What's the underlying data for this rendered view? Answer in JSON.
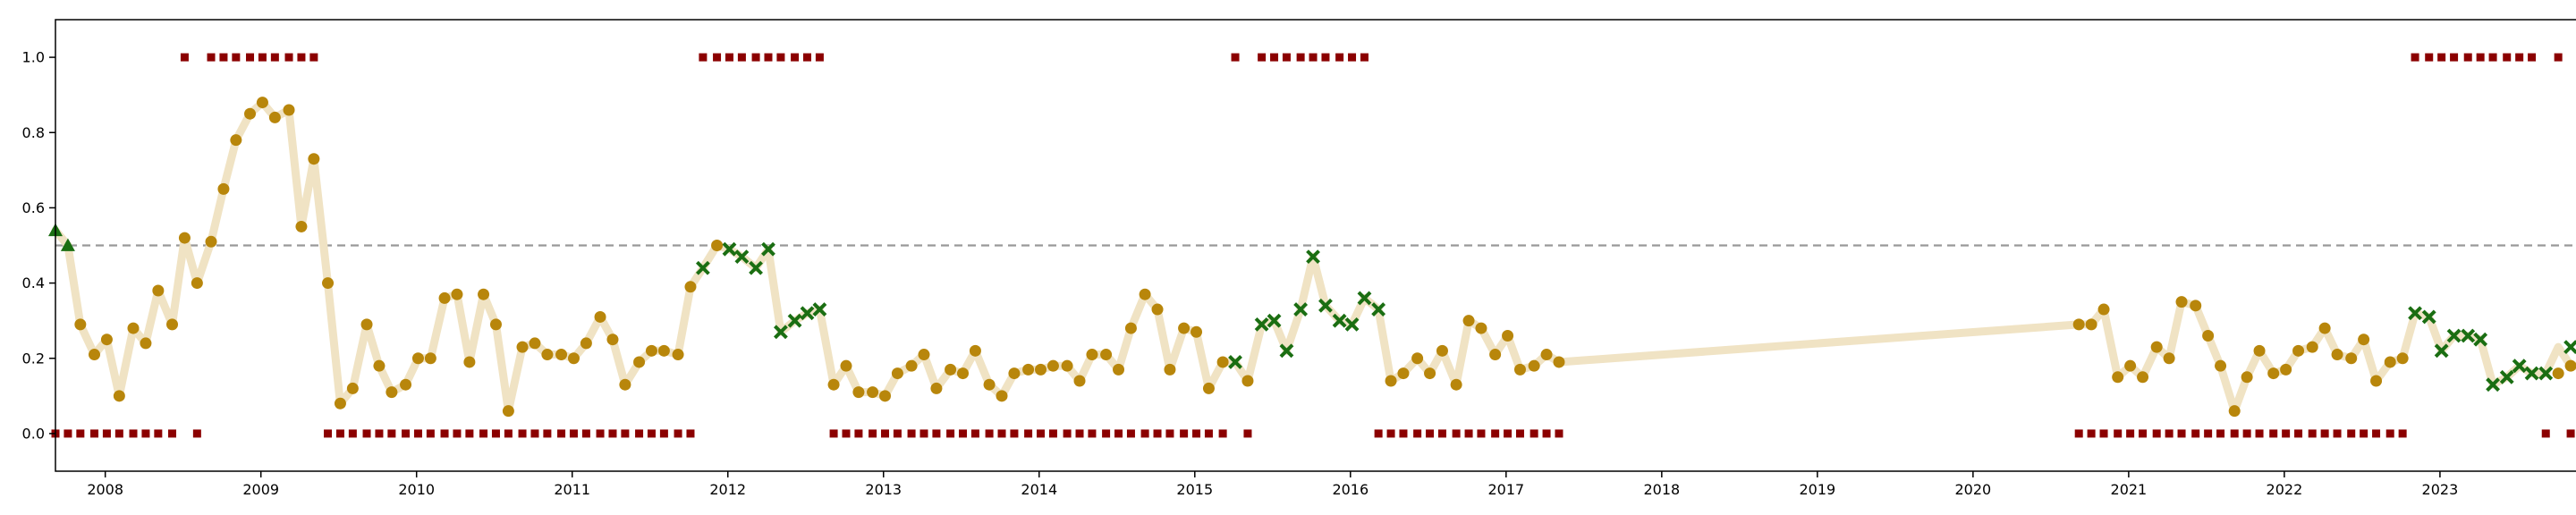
{
  "chart_data": {
    "type": "scatter",
    "title": "",
    "xlabel": "",
    "ylabel": "",
    "xlim": [
      2007.68,
      2023.92
    ],
    "ylim": [
      -0.1,
      1.1
    ],
    "x_ticks": [
      2008,
      2009,
      2010,
      2011,
      2012,
      2013,
      2014,
      2015,
      2016,
      2017,
      2018,
      2019,
      2020,
      2021,
      2022,
      2023
    ],
    "x_tick_labels": [
      "2008",
      "2009",
      "2010",
      "2011",
      "2012",
      "2013",
      "2014",
      "2015",
      "2016",
      "2017",
      "2018",
      "2019",
      "2020",
      "2021",
      "2022",
      "2023"
    ],
    "y_ticks": [
      0.0,
      0.2,
      0.4,
      0.6,
      0.8,
      1.0
    ],
    "y_tick_labels": [
      "0.0",
      "0.2",
      "0.4",
      "0.6",
      "0.8",
      "1.0"
    ],
    "reference_line": {
      "y": 0.5,
      "style": "dashed",
      "color": "#999999"
    },
    "grid": false,
    "legend": "none",
    "colors": {
      "line": "#f0e3c4",
      "circle": "#b8860b",
      "cross": "#1a6e12",
      "triangle": "#1a6e12",
      "square": "#8b0000"
    },
    "series": [
      {
        "marker": "line",
        "x": [
          2007.68,
          2007.76,
          2007.84,
          2007.93,
          2008.01,
          2008.09,
          2008.18,
          2008.26,
          2008.34,
          2008.43,
          2008.51,
          2008.59,
          2008.68,
          2008.76,
          2008.84,
          2008.93,
          2009.01,
          2009.09,
          2009.18,
          2009.26,
          2009.34,
          2009.43,
          2009.51,
          2009.59,
          2009.68,
          2009.76,
          2009.84,
          2009.93,
          2010.01,
          2010.09,
          2010.18,
          2010.26,
          2010.34,
          2010.43,
          2010.51,
          2010.59,
          2010.68,
          2010.76,
          2010.84,
          2010.93,
          2011.01,
          2011.09,
          2011.18,
          2011.26,
          2011.34,
          2011.43,
          2011.51,
          2011.59,
          2011.68,
          2011.76,
          2011.84,
          2011.93,
          2012.01,
          2012.09,
          2012.18,
          2012.26,
          2012.34,
          2012.43,
          2012.51,
          2012.59,
          2012.68,
          2012.76,
          2012.84,
          2012.93,
          2013.01,
          2013.09,
          2013.18,
          2013.26,
          2013.34,
          2013.43,
          2013.51,
          2013.59,
          2013.68,
          2013.76,
          2013.84,
          2013.93,
          2014.01,
          2014.09,
          2014.18,
          2014.26,
          2014.34,
          2014.43,
          2014.51,
          2014.59,
          2014.68,
          2014.76,
          2014.84,
          2014.93,
          2015.01,
          2015.09,
          2015.18,
          2015.26,
          2015.34,
          2015.43,
          2015.51,
          2015.59,
          2015.68,
          2015.76,
          2015.84,
          2015.93,
          2016.01,
          2016.09,
          2016.18,
          2016.26,
          2016.34,
          2016.43,
          2016.51,
          2016.59,
          2016.68,
          2016.76,
          2016.84,
          2016.93,
          2017.01,
          2017.09,
          2017.18,
          2017.26,
          2017.34,
          2020.68,
          2020.76,
          2020.84,
          2020.93,
          2021.01,
          2021.09,
          2021.18,
          2021.26,
          2021.34,
          2021.43,
          2021.51,
          2021.59,
          2021.68,
          2021.76,
          2021.84,
          2021.93,
          2022.01,
          2022.09,
          2022.18,
          2022.26,
          2022.34,
          2022.43,
          2022.51,
          2022.59,
          2022.68,
          2022.76,
          2022.84,
          2022.93,
          2023.01,
          2023.09,
          2023.18,
          2023.26,
          2023.34,
          2023.43,
          2023.51,
          2023.59,
          2023.68,
          2023.76,
          2023.84,
          2023.92
        ],
        "y": [
          0.54,
          0.5,
          0.29,
          0.21,
          0.25,
          0.1,
          0.28,
          0.24,
          0.38,
          0.29,
          0.52,
          0.4,
          0.51,
          0.65,
          0.78,
          0.85,
          0.88,
          0.84,
          0.86,
          0.55,
          0.73,
          0.4,
          0.08,
          0.12,
          0.29,
          0.18,
          0.11,
          0.13,
          0.2,
          0.2,
          0.36,
          0.37,
          0.19,
          0.37,
          0.29,
          0.06,
          0.23,
          0.24,
          0.21,
          0.21,
          0.2,
          0.24,
          0.31,
          0.25,
          0.13,
          0.19,
          0.22,
          0.22,
          0.21,
          0.39,
          0.44,
          0.5,
          0.49,
          0.47,
          0.44,
          0.49,
          0.27,
          0.3,
          0.32,
          0.33,
          0.13,
          0.18,
          0.11,
          0.11,
          0.1,
          0.16,
          0.18,
          0.21,
          0.12,
          0.17,
          0.16,
          0.22,
          0.13,
          0.1,
          0.16,
          0.17,
          0.17,
          0.18,
          0.18,
          0.14,
          0.21,
          0.21,
          0.17,
          0.28,
          0.37,
          0.33,
          0.17,
          0.28,
          0.27,
          0.12,
          0.19,
          0.19,
          0.14,
          0.29,
          0.3,
          0.22,
          0.33,
          0.47,
          0.34,
          0.3,
          0.29,
          0.36,
          0.33,
          0.14,
          0.16,
          0.2,
          0.16,
          0.22,
          0.13,
          0.3,
          0.28,
          0.21,
          0.26,
          0.17,
          0.18,
          0.21,
          0.19,
          0.29,
          0.29,
          0.33,
          0.15,
          0.18,
          0.15,
          0.23,
          0.2,
          0.35,
          0.34,
          0.26,
          0.18,
          0.06,
          0.15,
          0.22,
          0.16,
          0.17,
          0.22,
          0.23,
          0.28,
          0.21,
          0.2,
          0.25,
          0.14,
          0.19,
          0.2,
          0.32,
          0.31,
          0.22,
          0.26,
          0.26,
          0.25,
          0.13,
          0.15,
          0.18,
          0.16,
          0.16,
          0.23,
          0.18,
          0.18
        ]
      },
      {
        "marker": "circle",
        "x": [
          2007.84,
          2007.93,
          2008.01,
          2008.09,
          2008.18,
          2008.26,
          2008.34,
          2008.43,
          2008.51,
          2008.59,
          2008.68,
          2008.76,
          2008.84,
          2008.93,
          2009.01,
          2009.09,
          2009.18,
          2009.26,
          2009.34,
          2009.43,
          2009.51,
          2009.59,
          2009.68,
          2009.76,
          2009.84,
          2009.93,
          2010.01,
          2010.09,
          2010.18,
          2010.26,
          2010.34,
          2010.43,
          2010.51,
          2010.59,
          2010.68,
          2010.76,
          2010.84,
          2010.93,
          2011.01,
          2011.09,
          2011.18,
          2011.26,
          2011.34,
          2011.43,
          2011.51,
          2011.59,
          2011.68,
          2011.76,
          2011.93,
          2012.68,
          2012.76,
          2012.84,
          2012.93,
          2013.01,
          2013.09,
          2013.18,
          2013.26,
          2013.34,
          2013.43,
          2013.51,
          2013.59,
          2013.68,
          2013.76,
          2013.84,
          2013.93,
          2014.01,
          2014.09,
          2014.18,
          2014.26,
          2014.34,
          2014.43,
          2014.51,
          2014.59,
          2014.68,
          2014.76,
          2014.84,
          2014.93,
          2015.01,
          2015.09,
          2015.18,
          2015.34,
          2016.26,
          2016.34,
          2016.43,
          2016.51,
          2016.59,
          2016.68,
          2016.76,
          2016.84,
          2016.93,
          2017.01,
          2017.09,
          2017.18,
          2017.26,
          2017.34,
          2020.68,
          2020.76,
          2020.84,
          2020.93,
          2021.01,
          2021.09,
          2021.18,
          2021.26,
          2021.34,
          2021.43,
          2021.51,
          2021.59,
          2021.68,
          2021.76,
          2021.84,
          2021.93,
          2022.01,
          2022.09,
          2022.18,
          2022.26,
          2022.34,
          2022.43,
          2022.51,
          2022.59,
          2022.68,
          2022.76,
          2023.76,
          2023.84,
          2023.92
        ],
        "y": [
          0.29,
          0.21,
          0.25,
          0.1,
          0.28,
          0.24,
          0.38,
          0.29,
          0.52,
          0.4,
          0.51,
          0.65,
          0.78,
          0.85,
          0.88,
          0.84,
          0.86,
          0.55,
          0.73,
          0.4,
          0.08,
          0.12,
          0.29,
          0.18,
          0.11,
          0.13,
          0.2,
          0.2,
          0.36,
          0.37,
          0.19,
          0.37,
          0.29,
          0.06,
          0.23,
          0.24,
          0.21,
          0.21,
          0.2,
          0.24,
          0.31,
          0.25,
          0.13,
          0.19,
          0.22,
          0.22,
          0.21,
          0.39,
          0.5,
          0.13,
          0.18,
          0.11,
          0.11,
          0.1,
          0.16,
          0.18,
          0.21,
          0.12,
          0.17,
          0.16,
          0.22,
          0.13,
          0.1,
          0.16,
          0.17,
          0.17,
          0.18,
          0.18,
          0.14,
          0.21,
          0.21,
          0.17,
          0.28,
          0.37,
          0.33,
          0.17,
          0.28,
          0.27,
          0.12,
          0.19,
          0.14,
          0.14,
          0.16,
          0.2,
          0.16,
          0.22,
          0.13,
          0.3,
          0.28,
          0.21,
          0.26,
          0.17,
          0.18,
          0.21,
          0.19,
          0.29,
          0.29,
          0.33,
          0.15,
          0.18,
          0.15,
          0.23,
          0.2,
          0.35,
          0.34,
          0.26,
          0.18,
          0.06,
          0.15,
          0.22,
          0.16,
          0.17,
          0.22,
          0.23,
          0.28,
          0.21,
          0.2,
          0.25,
          0.14,
          0.19,
          0.2,
          0.16,
          0.18,
          0.18
        ]
      },
      {
        "marker": "cross",
        "x": [
          2011.84,
          2012.01,
          2012.09,
          2012.18,
          2012.26,
          2012.34,
          2012.43,
          2012.51,
          2012.59,
          2015.26,
          2015.43,
          2015.51,
          2015.59,
          2015.68,
          2015.76,
          2015.84,
          2015.93,
          2016.01,
          2016.09,
          2016.18,
          2022.84,
          2022.93,
          2023.01,
          2023.09,
          2023.18,
          2023.26,
          2023.34,
          2023.43,
          2023.51,
          2023.59,
          2023.68,
          2023.84
        ],
        "y": [
          0.44,
          0.49,
          0.47,
          0.44,
          0.49,
          0.27,
          0.3,
          0.32,
          0.33,
          0.19,
          0.29,
          0.3,
          0.22,
          0.33,
          0.47,
          0.34,
          0.3,
          0.29,
          0.36,
          0.33,
          0.32,
          0.31,
          0.22,
          0.26,
          0.26,
          0.25,
          0.13,
          0.15,
          0.18,
          0.16,
          0.16,
          0.23
        ]
      },
      {
        "marker": "triangle",
        "x": [
          2007.68,
          2007.76
        ],
        "y": [
          0.54,
          0.5
        ]
      },
      {
        "marker": "square",
        "x": [
          2007.68,
          2007.76,
          2007.84,
          2007.93,
          2008.01,
          2008.09,
          2008.18,
          2008.26,
          2008.34,
          2008.43,
          2008.51,
          2008.59,
          2008.68,
          2008.76,
          2008.84,
          2008.93,
          2009.01,
          2009.09,
          2009.18,
          2009.26,
          2009.34,
          2009.43,
          2009.51,
          2009.59,
          2009.68,
          2009.76,
          2009.84,
          2009.93,
          2010.01,
          2010.09,
          2010.18,
          2010.26,
          2010.34,
          2010.43,
          2010.51,
          2010.59,
          2010.68,
          2010.76,
          2010.84,
          2010.93,
          2011.01,
          2011.09,
          2011.18,
          2011.26,
          2011.34,
          2011.43,
          2011.51,
          2011.59,
          2011.68,
          2011.76,
          2011.84,
          2011.93,
          2012.01,
          2012.09,
          2012.18,
          2012.26,
          2012.34,
          2012.43,
          2012.51,
          2012.59,
          2012.68,
          2012.76,
          2012.84,
          2012.93,
          2013.01,
          2013.09,
          2013.18,
          2013.26,
          2013.34,
          2013.43,
          2013.51,
          2013.59,
          2013.68,
          2013.76,
          2013.84,
          2013.93,
          2014.01,
          2014.09,
          2014.18,
          2014.26,
          2014.34,
          2014.43,
          2014.51,
          2014.59,
          2014.68,
          2014.76,
          2014.84,
          2014.93,
          2015.01,
          2015.09,
          2015.18,
          2015.26,
          2015.34,
          2015.43,
          2015.51,
          2015.59,
          2015.68,
          2015.76,
          2015.84,
          2015.93,
          2016.01,
          2016.09,
          2016.18,
          2016.26,
          2016.34,
          2016.43,
          2016.51,
          2016.59,
          2016.68,
          2016.76,
          2016.84,
          2016.93,
          2017.01,
          2017.09,
          2017.18,
          2017.26,
          2017.34,
          2020.68,
          2020.76,
          2020.84,
          2020.93,
          2021.01,
          2021.09,
          2021.18,
          2021.26,
          2021.34,
          2021.43,
          2021.51,
          2021.59,
          2021.68,
          2021.76,
          2021.84,
          2021.93,
          2022.01,
          2022.09,
          2022.18,
          2022.26,
          2022.34,
          2022.43,
          2022.51,
          2022.59,
          2022.68,
          2022.76,
          2022.84,
          2022.93,
          2023.01,
          2023.09,
          2023.18,
          2023.26,
          2023.34,
          2023.43,
          2023.51,
          2023.59,
          2023.68,
          2023.76,
          2023.84,
          2023.92
        ],
        "y": [
          0,
          0,
          0,
          0,
          0,
          0,
          0,
          0,
          0,
          0,
          1,
          0,
          1,
          1,
          1,
          1,
          1,
          1,
          1,
          1,
          1,
          0,
          0,
          0,
          0,
          0,
          0,
          0,
          0,
          0,
          0,
          0,
          0,
          0,
          0,
          0,
          0,
          0,
          0,
          0,
          0,
          0,
          0,
          0,
          0,
          0,
          0,
          0,
          0,
          0,
          1,
          1,
          1,
          1,
          1,
          1,
          1,
          1,
          1,
          1,
          0,
          0,
          0,
          0,
          0,
          0,
          0,
          0,
          0,
          0,
          0,
          0,
          0,
          0,
          0,
          0,
          0,
          0,
          0,
          0,
          0,
          0,
          0,
          0,
          0,
          0,
          0,
          0,
          0,
          0,
          0,
          1,
          0,
          1,
          1,
          1,
          1,
          1,
          1,
          1,
          1,
          1,
          0,
          0,
          0,
          0,
          0,
          0,
          0,
          0,
          0,
          0,
          0,
          0,
          0,
          0,
          0,
          0,
          0,
          0,
          0,
          0,
          0,
          0,
          0,
          0,
          0,
          0,
          0,
          0,
          0,
          0,
          0,
          0,
          0,
          0,
          0,
          0,
          0,
          0,
          0,
          0,
          0,
          1,
          1,
          1,
          1,
          1,
          1,
          1,
          1,
          1,
          1,
          0,
          1,
          0,
          0
        ]
      }
    ]
  }
}
